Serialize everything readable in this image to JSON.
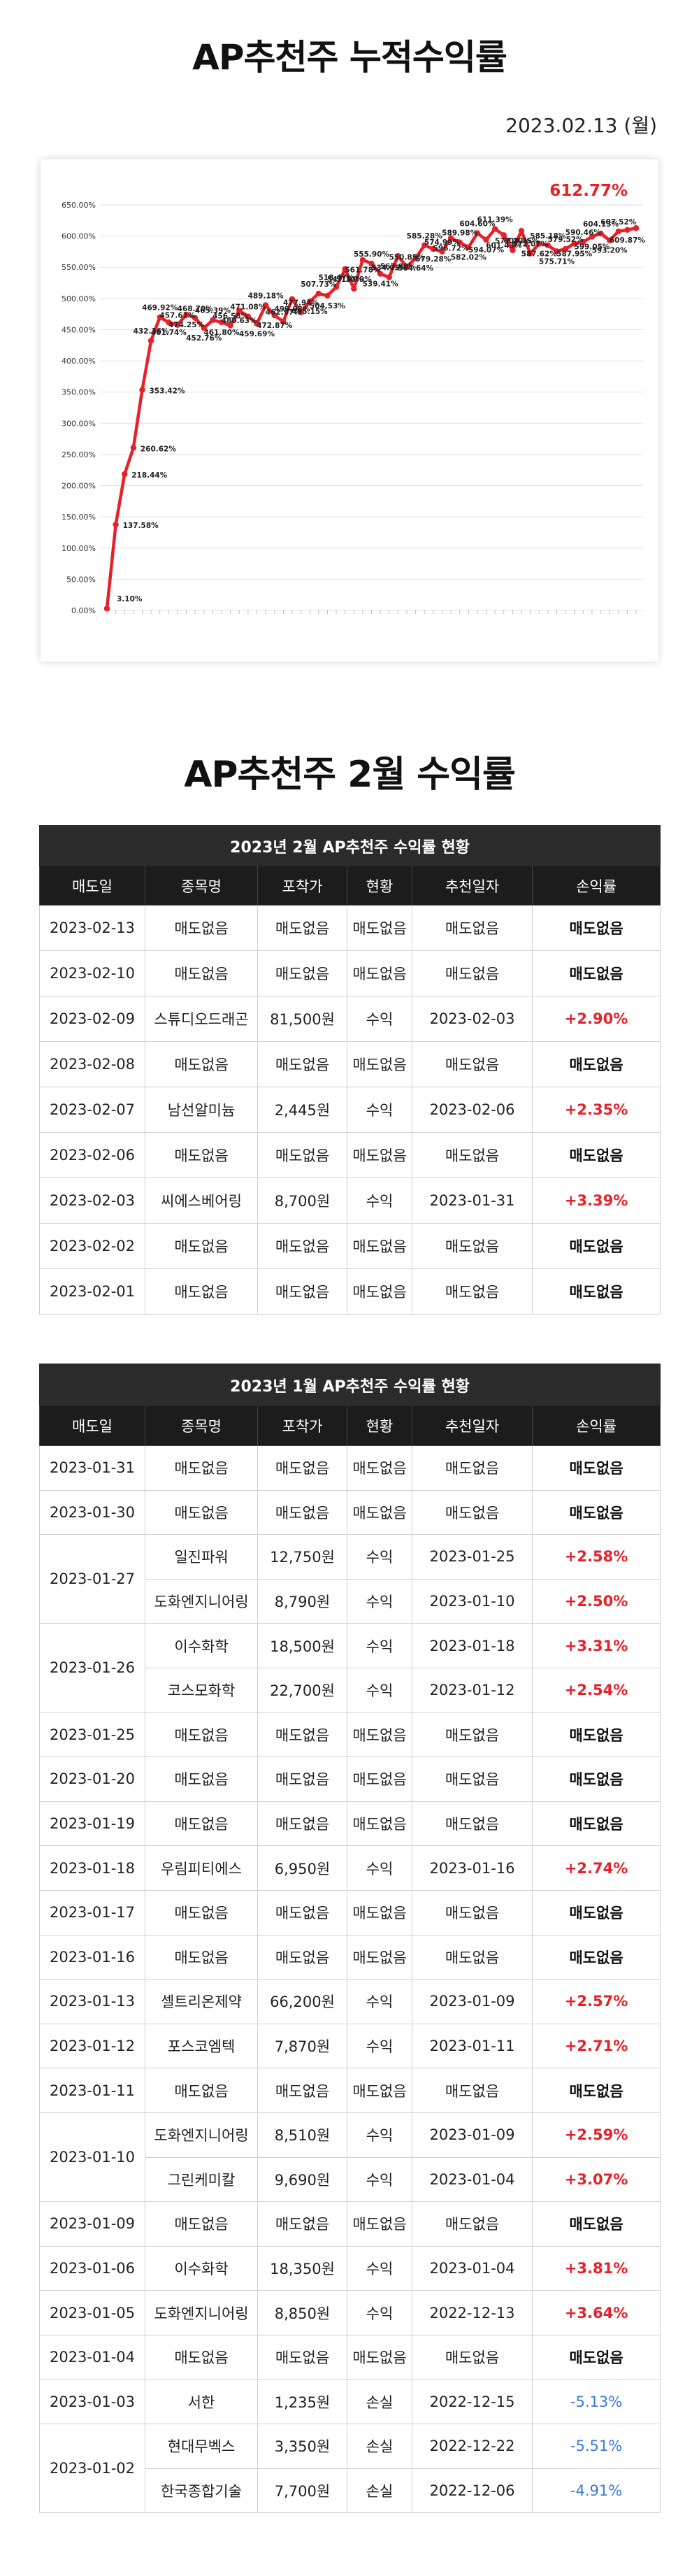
{
  "header": {
    "title": "AP추천주 누적수익률",
    "date": "2023.02.13 (월)"
  },
  "chart_data": {
    "type": "line",
    "highlight": "612.77%",
    "y_ticks": [
      "650.00%",
      "600.00%",
      "550.00%",
      "500.00%",
      "450.00%",
      "400.00%",
      "350.00%",
      "300.00%",
      "250.00%",
      "200.00%",
      "150.00%",
      "100.00%",
      "50.00%",
      "0.00%"
    ],
    "ylim": [
      0,
      650
    ],
    "grid": true,
    "line_color": "#e8202a",
    "values": [
      3.1,
      137.58,
      218.44,
      260.62,
      353.42,
      432.36,
      469.92,
      461.74,
      457.61,
      474.25,
      468.7,
      452.76,
      465.39,
      461.8,
      456.58,
      480.63,
      471.08,
      459.69,
      489.18,
      472.87,
      462.97,
      499.02,
      477.94,
      495.15,
      507.73,
      504.53,
      518.47,
      547.1,
      515.79,
      561.78,
      555.9,
      539.41,
      534.05,
      567.9,
      550.85,
      564.64,
      585.28,
      579.28,
      574.99,
      596.72,
      589.98,
      582.02,
      604.6,
      594.07,
      611.39,
      601.43,
      577.2,
      608.35,
      572.07,
      587.62,
      585.18,
      575.71,
      579.52,
      587.95,
      590.46,
      599.05,
      604.13,
      593.2,
      607.52,
      609.87,
      612.77
    ],
    "labels": [
      "3.10%",
      "137.58%",
      "218.44%",
      "260.62%",
      "353.42%",
      "432.36%",
      "469.92%",
      "461.74%",
      "457.61%",
      "474.25%",
      "468.70%",
      "452.76%",
      "465.39%",
      "461.80%",
      "456.58%",
      "480.63%",
      "471.08%",
      "459.69%",
      "489.18%",
      "472.87%",
      "462.97%",
      "499.02%",
      "477.94%",
      "495.15%",
      "507.73%",
      "504.53%",
      "518.47%",
      "547.10%",
      "515.79%",
      "561.78%",
      "555.90%",
      "539.41%",
      "534.05%",
      "567.90%",
      "550.85%",
      "564.64%",
      "585.28%",
      "579.28%",
      "574.99%",
      "596.72%",
      "589.98%",
      "582.02%",
      "604.60%",
      "594.07%",
      "611.39%",
      "601.43%",
      "577.20%",
      "608.35%",
      "572.07%",
      "587.62%",
      "585.18%",
      "575.71%",
      "579.52%",
      "587.95%",
      "590.46%",
      "599.05%",
      "604.13%",
      "593.20%",
      "607.52%",
      "609.87%",
      ""
    ]
  },
  "section2": {
    "title": "AP추천주 2월 수익률"
  },
  "columns": [
    "매도일",
    "종목명",
    "포착가",
    "현황",
    "추천일자",
    "손익률"
  ],
  "feb": {
    "caption": "2023년 2월 AP추천주 수익률 현황",
    "rows": [
      {
        "date": "2023-02-13",
        "name": "매도없음",
        "price": "매도없음",
        "status": "매도없음",
        "rec": "매도없음",
        "pl": "매도없음",
        "type": "none"
      },
      {
        "date": "2023-02-10",
        "name": "매도없음",
        "price": "매도없음",
        "status": "매도없음",
        "rec": "매도없음",
        "pl": "매도없음",
        "type": "none"
      },
      {
        "date": "2023-02-09",
        "name": "스튜디오드래곤",
        "price": "81,500원",
        "status": "수익",
        "rec": "2023-02-03",
        "pl": "+2.90%",
        "type": "gain"
      },
      {
        "date": "2023-02-08",
        "name": "매도없음",
        "price": "매도없음",
        "status": "매도없음",
        "rec": "매도없음",
        "pl": "매도없음",
        "type": "none"
      },
      {
        "date": "2023-02-07",
        "name": "남선알미늄",
        "price": "2,445원",
        "status": "수익",
        "rec": "2023-02-06",
        "pl": "+2.35%",
        "type": "gain"
      },
      {
        "date": "2023-02-06",
        "name": "매도없음",
        "price": "매도없음",
        "status": "매도없음",
        "rec": "매도없음",
        "pl": "매도없음",
        "type": "none"
      },
      {
        "date": "2023-02-03",
        "name": "씨에스베어링",
        "price": "8,700원",
        "status": "수익",
        "rec": "2023-01-31",
        "pl": "+3.39%",
        "type": "gain"
      },
      {
        "date": "2023-02-02",
        "name": "매도없음",
        "price": "매도없음",
        "status": "매도없음",
        "rec": "매도없음",
        "pl": "매도없음",
        "type": "none"
      },
      {
        "date": "2023-02-01",
        "name": "매도없음",
        "price": "매도없음",
        "status": "매도없음",
        "rec": "매도없음",
        "pl": "매도없음",
        "type": "none"
      }
    ]
  },
  "jan": {
    "caption": "2023년 1월 AP추천주 수익률 현황",
    "groups": [
      {
        "date": "2023-01-31",
        "rows": [
          {
            "name": "매도없음",
            "price": "매도없음",
            "status": "매도없음",
            "rec": "매도없음",
            "pl": "매도없음",
            "type": "none"
          }
        ]
      },
      {
        "date": "2023-01-30",
        "rows": [
          {
            "name": "매도없음",
            "price": "매도없음",
            "status": "매도없음",
            "rec": "매도없음",
            "pl": "매도없음",
            "type": "none"
          }
        ]
      },
      {
        "date": "2023-01-27",
        "rows": [
          {
            "name": "일진파워",
            "price": "12,750원",
            "status": "수익",
            "rec": "2023-01-25",
            "pl": "+2.58%",
            "type": "gain"
          },
          {
            "name": "도화엔지니어링",
            "price": "8,790원",
            "status": "수익",
            "rec": "2023-01-10",
            "pl": "+2.50%",
            "type": "gain"
          }
        ]
      },
      {
        "date": "2023-01-26",
        "rows": [
          {
            "name": "이수화학",
            "price": "18,500원",
            "status": "수익",
            "rec": "2023-01-18",
            "pl": "+3.31%",
            "type": "gain"
          },
          {
            "name": "코스모화학",
            "price": "22,700원",
            "status": "수익",
            "rec": "2023-01-12",
            "pl": "+2.54%",
            "type": "gain"
          }
        ]
      },
      {
        "date": "2023-01-25",
        "rows": [
          {
            "name": "매도없음",
            "price": "매도없음",
            "status": "매도없음",
            "rec": "매도없음",
            "pl": "매도없음",
            "type": "none"
          }
        ]
      },
      {
        "date": "2023-01-20",
        "rows": [
          {
            "name": "매도없음",
            "price": "매도없음",
            "status": "매도없음",
            "rec": "매도없음",
            "pl": "매도없음",
            "type": "none"
          }
        ]
      },
      {
        "date": "2023-01-19",
        "rows": [
          {
            "name": "매도없음",
            "price": "매도없음",
            "status": "매도없음",
            "rec": "매도없음",
            "pl": "매도없음",
            "type": "none"
          }
        ]
      },
      {
        "date": "2023-01-18",
        "rows": [
          {
            "name": "우림피티에스",
            "price": "6,950원",
            "status": "수익",
            "rec": "2023-01-16",
            "pl": "+2.74%",
            "type": "gain"
          }
        ]
      },
      {
        "date": "2023-01-17",
        "rows": [
          {
            "name": "매도없음",
            "price": "매도없음",
            "status": "매도없음",
            "rec": "매도없음",
            "pl": "매도없음",
            "type": "none"
          }
        ]
      },
      {
        "date": "2023-01-16",
        "rows": [
          {
            "name": "매도없음",
            "price": "매도없음",
            "status": "매도없음",
            "rec": "매도없음",
            "pl": "매도없음",
            "type": "none"
          }
        ]
      },
      {
        "date": "2023-01-13",
        "rows": [
          {
            "name": "셀트리온제약",
            "price": "66,200원",
            "status": "수익",
            "rec": "2023-01-09",
            "pl": "+2.57%",
            "type": "gain"
          }
        ]
      },
      {
        "date": "2023-01-12",
        "rows": [
          {
            "name": "포스코엠텍",
            "price": "7,870원",
            "status": "수익",
            "rec": "2023-01-11",
            "pl": "+2.71%",
            "type": "gain"
          }
        ]
      },
      {
        "date": "2023-01-11",
        "rows": [
          {
            "name": "매도없음",
            "price": "매도없음",
            "status": "매도없음",
            "rec": "매도없음",
            "pl": "매도없음",
            "type": "none"
          }
        ]
      },
      {
        "date": "2023-01-10",
        "rows": [
          {
            "name": "도화엔지니어링",
            "price": "8,510원",
            "status": "수익",
            "rec": "2023-01-09",
            "pl": "+2.59%",
            "type": "gain"
          },
          {
            "name": "그린케미칼",
            "price": "9,690원",
            "status": "수익",
            "rec": "2023-01-04",
            "pl": "+3.07%",
            "type": "gain"
          }
        ]
      },
      {
        "date": "2023-01-09",
        "rows": [
          {
            "name": "매도없음",
            "price": "매도없음",
            "status": "매도없음",
            "rec": "매도없음",
            "pl": "매도없음",
            "type": "none"
          }
        ]
      },
      {
        "date": "2023-01-06",
        "rows": [
          {
            "name": "이수화학",
            "price": "18,350원",
            "status": "수익",
            "rec": "2023-01-04",
            "pl": "+3.81%",
            "type": "gain"
          }
        ]
      },
      {
        "date": "2023-01-05",
        "rows": [
          {
            "name": "도화엔지니어링",
            "price": "8,850원",
            "status": "수익",
            "rec": "2022-12-13",
            "pl": "+3.64%",
            "type": "gain"
          }
        ]
      },
      {
        "date": "2023-01-04",
        "rows": [
          {
            "name": "매도없음",
            "price": "매도없음",
            "status": "매도없음",
            "rec": "매도없음",
            "pl": "매도없음",
            "type": "none"
          }
        ]
      },
      {
        "date": "2023-01-03",
        "rows": [
          {
            "name": "서한",
            "price": "1,235원",
            "status": "손실",
            "rec": "2022-12-15",
            "pl": "-5.13%",
            "type": "loss"
          }
        ]
      },
      {
        "date": "2023-01-02",
        "rows": [
          {
            "name": "현대무벡스",
            "price": "3,350원",
            "status": "손실",
            "rec": "2022-12-22",
            "pl": "-5.51%",
            "type": "loss"
          },
          {
            "name": "한국종합기술",
            "price": "7,700원",
            "status": "손실",
            "rec": "2022-12-06",
            "pl": "-4.91%",
            "type": "loss"
          }
        ]
      }
    ]
  }
}
